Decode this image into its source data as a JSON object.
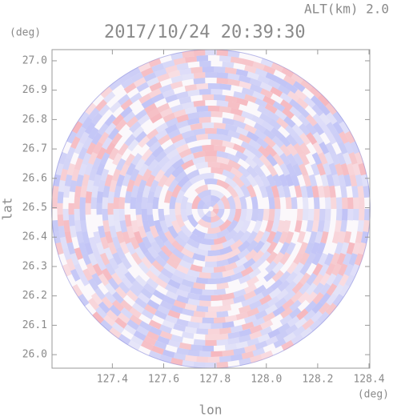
{
  "chart_data": {
    "type": "radar-ppi",
    "title": "2017/10/24 20:39:30",
    "subtitle": "ALT(km)  2.0",
    "x_label": "lon",
    "y_label": "lat",
    "x_unit": "(deg)",
    "y_unit": "(deg)",
    "xlim": [
      127.165,
      128.403
    ],
    "ylim": [
      25.954,
      27.038
    ],
    "xticks": [
      127.4,
      127.6,
      127.8,
      {
        "value": 128.0,
        "label": "128.0"
      },
      128.2,
      128.4
    ],
    "yticks": [
      {
        "value": 26.0,
        "label": "26.0"
      },
      26.1,
      26.2,
      26.3,
      26.4,
      26.5,
      26.6,
      26.7,
      26.8,
      26.9,
      {
        "value": 27.0,
        "label": "27.0"
      }
    ]
  }
}
